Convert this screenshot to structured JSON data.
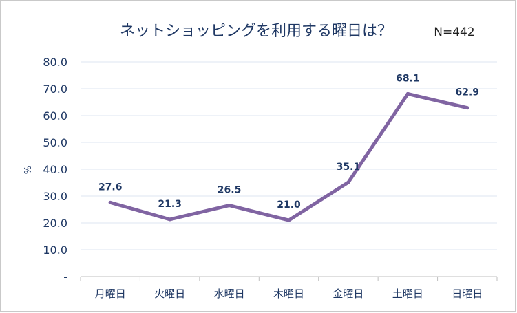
{
  "chart_data": {
    "type": "line",
    "title": "ネットショッピングを利用する曜日は？",
    "note": "N=442",
    "ylabel": "%",
    "xlabel": "",
    "categories": [
      "月曜日",
      "火曜日",
      "水曜日",
      "木曜日",
      "金曜日",
      "土曜日",
      "日曜日"
    ],
    "values": [
      27.6,
      21.3,
      26.5,
      21.0,
      35.1,
      68.1,
      62.9
    ],
    "data_labels": [
      "27.6",
      "21.3",
      "26.5",
      "21.0",
      "35.1",
      "68.1",
      "62.9"
    ],
    "ylim": [
      0,
      80
    ],
    "yticks": [
      "-",
      "10.0",
      "20.0",
      "30.0",
      "40.0",
      "50.0",
      "60.0",
      "70.0",
      "80.0"
    ],
    "grid": true,
    "line_color": "#8064a2",
    "text_color": "#1f3864",
    "grid_color": "#dde6f0"
  }
}
